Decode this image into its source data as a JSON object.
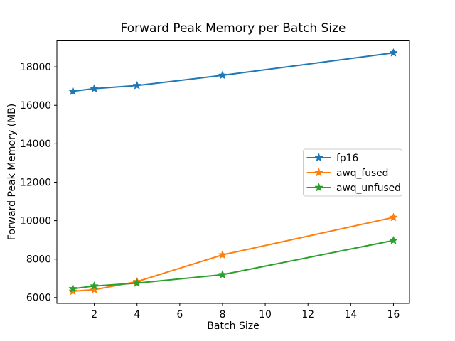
{
  "chart_data": {
    "type": "line",
    "title": "Forward Peak Memory per Batch Size",
    "xlabel": "Batch Size",
    "ylabel": "Forward Peak Memory (MB)",
    "x": [
      1,
      2,
      4,
      8,
      16
    ],
    "series": [
      {
        "name": "fp16",
        "color": "#1f77b4",
        "values": [
          16730,
          16870,
          17030,
          17560,
          18730
        ]
      },
      {
        "name": "awq_fused",
        "color": "#ff7f0e",
        "values": [
          6330,
          6410,
          6830,
          8220,
          10170
        ]
      },
      {
        "name": "awq_unfused",
        "color": "#2ca02c",
        "values": [
          6460,
          6600,
          6750,
          7190,
          8970
        ]
      }
    ],
    "xticks": [
      2,
      4,
      6,
      8,
      10,
      12,
      14,
      16
    ],
    "yticks": [
      6000,
      8000,
      10000,
      12000,
      14000,
      16000,
      18000
    ],
    "xlim": [
      0.25,
      16.75
    ],
    "ylim": [
      5698,
      19354
    ],
    "marker": "star",
    "grid": false,
    "legend": {
      "position": "center-right",
      "entries": [
        "fp16",
        "awq_fused",
        "awq_unfused"
      ]
    },
    "background": "#ffffff",
    "text_color": "#000000",
    "spine_color": "#000000",
    "legend_border_color": "#cccccc"
  }
}
